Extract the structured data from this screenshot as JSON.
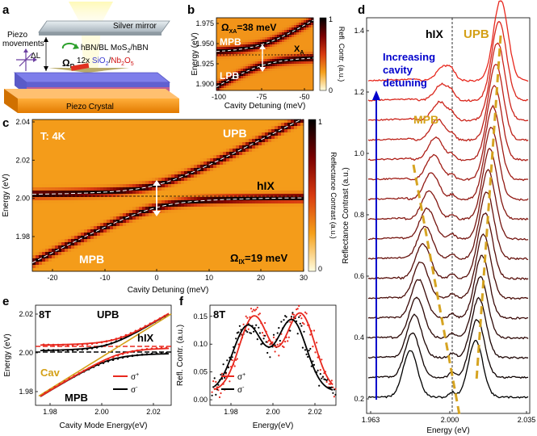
{
  "colors": {
    "upb": "#d4a017",
    "blue": "#0000cc",
    "red": "#e8281e",
    "black": "#000000",
    "cav": "#d4a017"
  },
  "panel_labels": {
    "a": "a",
    "b": "b",
    "c": "c",
    "d": "d",
    "e": "e",
    "f": "f"
  },
  "panel_a": {
    "silver_mirror": "Silver mirror",
    "piezo_movements": "Piezo",
    "piezo_movements2": "movements",
    "delta_l": "ΔL",
    "omega_r": "Ω",
    "omega_r_sub": "R",
    "layer1": "hBN/BL MoS",
    "layer1_sub": "2",
    "layer1_end": "/hBN",
    "layer2_pre": "12x ",
    "layer2_sio": "SiO",
    "layer2_sio_sub": "2",
    "layer2_slash": "/",
    "layer2_nb": "Nb",
    "layer2_nb_sub": "2",
    "layer2_o": "O",
    "layer2_o_sub": "5",
    "piezo_crystal": "Piezo Crystal"
  },
  "panel_b": {
    "omega_label": "Ω",
    "omega_sub": "XA",
    "omega_value": "=38 meV",
    "mpb": "MPB",
    "lpb": "LPB",
    "xa": "X",
    "xa_sub": "A",
    "ylabel": "Energy (eV)",
    "xlabel": "Cavity Detuning (meV)",
    "cbar_label": "Refl. Contr. (a.u.)",
    "cbar_max": "1",
    "cbar_min": "0",
    "yticks": [
      "1.975",
      "1.950",
      "1.925",
      "1.900"
    ],
    "xticks": [
      "-100",
      "-75",
      "-50"
    ]
  },
  "panel_c": {
    "temp": "T: 4K",
    "upb": "UPB",
    "hix": "hIX",
    "mpb": "MPB",
    "omega_label": "Ω",
    "omega_sub": "IX",
    "omega_value": "=19 meV",
    "ylabel": "Energy (eV)",
    "xlabel": "Cavity Detuning (meV)",
    "cbar_label": "Reflectance Contrast (a.u.)",
    "cbar_max": "1",
    "cbar_min": "0",
    "yticks": [
      "2.04",
      "2.02",
      "2.00",
      "1.98"
    ],
    "xticks": [
      "-20",
      "-10",
      "0",
      "10",
      "20",
      "30"
    ]
  },
  "panel_d": {
    "hix": "hIX",
    "upb": "UPB",
    "mpb": "MPB",
    "arrow_text1": "Increasing",
    "arrow_text2": "cavity",
    "arrow_text3": "detuning",
    "ylabel": "Reflectance Contrast (a.u.)",
    "xlabel": "Energy (eV)",
    "yticks": [
      "1.4",
      "1.2",
      "1.0",
      "0.8",
      "0.6",
      "0.4",
      "0.2"
    ],
    "xticks": [
      "1.963",
      "2.000",
      "2.035"
    ]
  },
  "panel_e": {
    "field": "8T",
    "upb": "UPB",
    "hix": "hIX",
    "cav": "Cav",
    "mpb": "MPB",
    "legend_plus": "σ",
    "legend_plus_sup": "+",
    "legend_minus": "σ",
    "legend_minus_sup": "-",
    "ylabel": "Energy (eV)",
    "xlabel": "Cavity Mode Energy(eV)",
    "yticks": [
      "2.02",
      "2.00",
      "1.98"
    ],
    "xticks": [
      "1.98",
      "2.00",
      "2.02"
    ]
  },
  "panel_f": {
    "field": "8T",
    "legend_plus": "σ",
    "legend_plus_sup": "+",
    "legend_minus": "σ",
    "legend_minus_sup": "-",
    "ylabel": "Refl. Contr. (a.u.)",
    "xlabel": "Energy(eV)",
    "yticks": [
      "0.15",
      "0.10",
      "0.05",
      "0.00"
    ],
    "xticks": [
      "1.98",
      "2.00",
      "2.02"
    ]
  },
  "chart_data": [
    {
      "type": "heatmap",
      "panel": "b",
      "title": "",
      "xlabel": "Cavity Detuning (meV)",
      "ylabel": "Energy (eV)",
      "xlim": [
        -100,
        -45
      ],
      "ylim": [
        1.895,
        1.98
      ],
      "exciton_energy": 1.935,
      "rabi_meV": 38
    },
    {
      "type": "heatmap",
      "panel": "c",
      "title": "",
      "xlabel": "Cavity Detuning (meV)",
      "ylabel": "Energy (eV)",
      "xlim": [
        -25,
        30
      ],
      "ylim": [
        1.965,
        2.04
      ],
      "exciton_energy": 2.002,
      "rabi_meV": 19
    },
    {
      "type": "line",
      "panel": "d",
      "xlabel": "Energy (eV)",
      "ylabel": "Reflectance Contrast (a.u.)",
      "xlim": [
        1.963,
        2.035
      ],
      "ylim": [
        0.17,
        1.45
      ],
      "n_traces": 17,
      "hix_energy": 2.001
    },
    {
      "type": "line",
      "panel": "e",
      "xlabel": "Cavity Mode Energy(eV)",
      "ylabel": "Energy (eV)",
      "xlim": [
        1.972,
        2.025
      ],
      "ylim": [
        1.966,
        2.031
      ],
      "hix_plus": 2.005,
      "hix_minus": 2.0025
    },
    {
      "type": "scatter",
      "panel": "f",
      "xlabel": "Energy(eV)",
      "ylabel": "Refl. Contr. (a.u.)",
      "xlim": [
        1.97,
        2.03
      ],
      "ylim": [
        -0.01,
        0.17
      ],
      "series": [
        {
          "name": "σ+",
          "peaks": [
            1.991,
            2.013
          ],
          "heights": [
            0.15,
            0.16
          ]
        },
        {
          "name": "σ-",
          "peaks": [
            1.988,
            2.009
          ],
          "heights": [
            0.13,
            0.145
          ]
        }
      ]
    }
  ]
}
